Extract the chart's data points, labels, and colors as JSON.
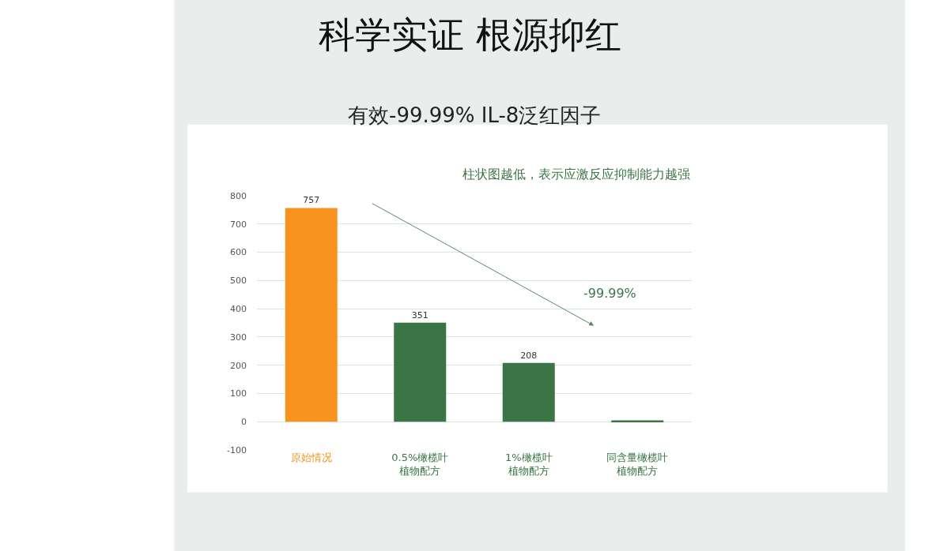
{
  "chart_data": {
    "type": "bar",
    "title": "科学实证 根源抑红",
    "subtitle": "有效-99.99% IL-8泛红因子",
    "categories": [
      "原始情况",
      "0.5%橄榄叶植物配方",
      "1%橄榄叶植物配方",
      "同含量橄榄叶植物配方"
    ],
    "values": [
      757,
      351,
      208,
      5
    ],
    "value_labels": [
      "757",
      "351",
      "208",
      null
    ],
    "colors": [
      "#f7931e",
      "#3b7545",
      "#3b7545",
      "#3b7545"
    ],
    "ylim": [
      -100,
      800
    ],
    "yticks": [
      -100,
      0,
      100,
      200,
      300,
      400,
      500,
      600,
      700,
      800
    ],
    "grid": "y",
    "annotations": [
      "柱状图越低，表示应激反应抑制能力越强",
      "-99.99%"
    ]
  }
}
